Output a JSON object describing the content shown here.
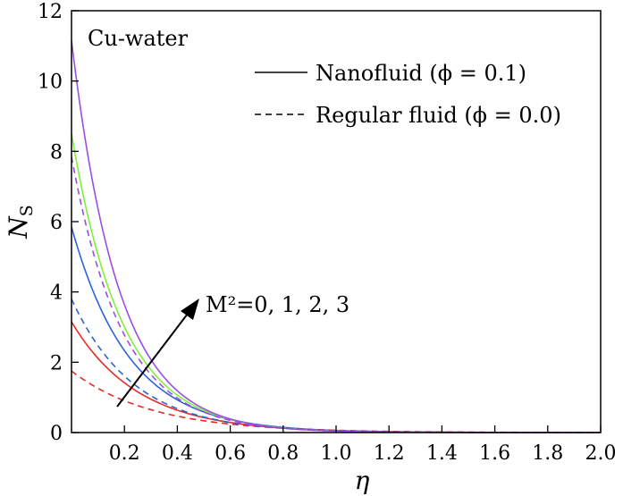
{
  "chart_data": {
    "type": "line",
    "title": "",
    "xlabel": "η",
    "ylabel": "N",
    "ylabel_sub": "S",
    "xlim": [
      0,
      2.0
    ],
    "ylim": [
      0,
      12
    ],
    "x_ticks": [
      "0.2",
      "0.4",
      "0.6",
      "0.8",
      "1.0",
      "1.2",
      "1.4",
      "1.6",
      "1.8",
      "2.0"
    ],
    "y_ticks": [
      "0",
      "2",
      "4",
      "6",
      "8",
      "10",
      "12"
    ],
    "inset_label": "Cu-water",
    "annotation": "M²=0, 1, 2, 3",
    "legend": [
      {
        "label": "Nanofluid (ϕ = 0.1)",
        "style": "solid"
      },
      {
        "label": "Regular fluid (ϕ = 0.0)",
        "style": "dashed"
      }
    ],
    "series": [
      {
        "M2": 0,
        "style": "solid",
        "color": "#e52b2b",
        "y0": 3.15,
        "decay": 4.0
      },
      {
        "M2": 1,
        "style": "solid",
        "color": "#2b63d9",
        "y0": 5.85,
        "decay": 4.6
      },
      {
        "M2": 2,
        "style": "solid",
        "color": "#7ff03a",
        "y0": 8.5,
        "decay": 5.2
      },
      {
        "M2": 3,
        "style": "solid",
        "color": "#9b4ee0",
        "y0": 11.15,
        "decay": 5.6
      },
      {
        "M2": 0,
        "style": "dashed",
        "color": "#e52b2b",
        "y0": 1.75,
        "decay": 3.3
      },
      {
        "M2": 1,
        "style": "dashed",
        "color": "#2b63d9",
        "y0": 3.8,
        "decay": 4.3
      },
      {
        "M2": 2,
        "style": "dashed",
        "color": "#9b4ee0",
        "y0": 7.85,
        "decay": 5.2
      }
    ]
  }
}
